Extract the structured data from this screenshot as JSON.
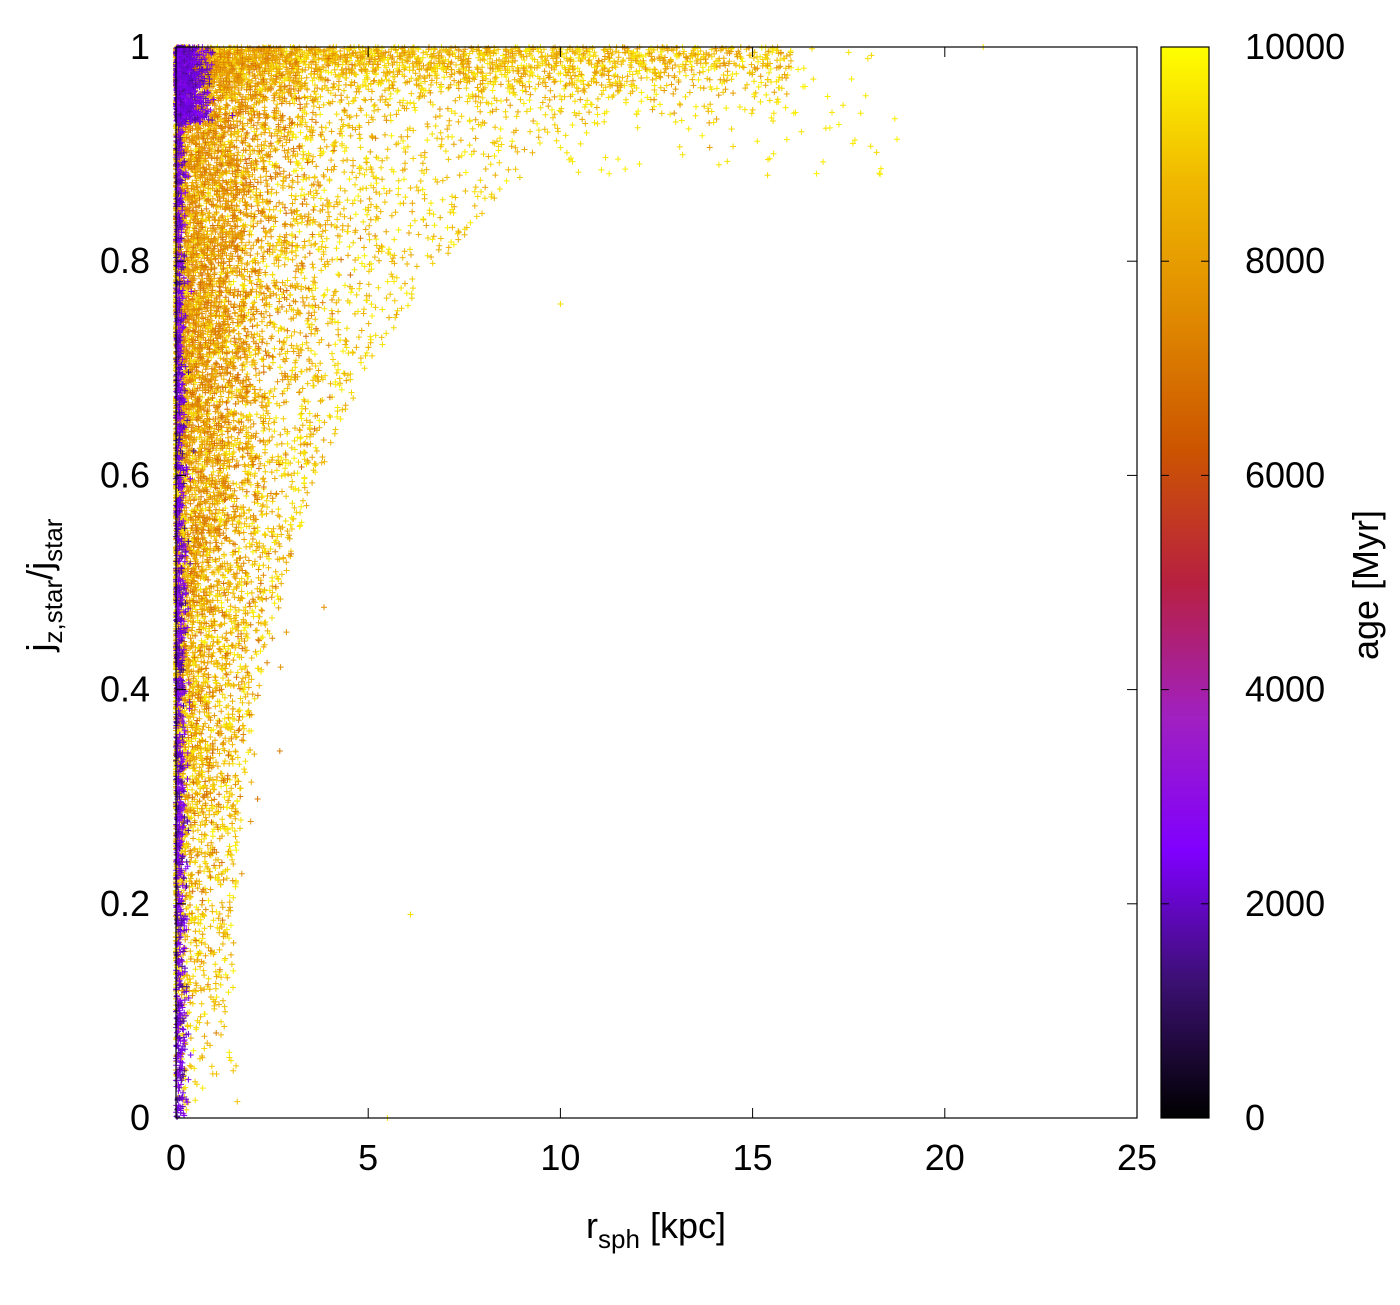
{
  "chart_data": {
    "type": "scatter",
    "title": "",
    "marker": "+",
    "x_axis": {
      "label_main": "r",
      "label_sub": "sph",
      "label_unit": " [kpc]",
      "range": [
        0,
        25
      ],
      "ticks": [
        0,
        5,
        10,
        15,
        20,
        25
      ],
      "tick_labels": [
        "0",
        "5",
        "10",
        "15",
        "20",
        "25"
      ]
    },
    "y_axis": {
      "label_parts": [
        {
          "text": "j",
          "sub": "z,star"
        },
        {
          "text": "/j",
          "sub": "star"
        }
      ],
      "range": [
        0,
        1
      ],
      "ticks": [
        0,
        0.2,
        0.4,
        0.6,
        0.8,
        1
      ],
      "tick_labels": [
        "0",
        "0.2",
        "0.4",
        "0.6",
        "0.8",
        "1"
      ]
    },
    "colorbar": {
      "label": "age [Myr]",
      "range": [
        0,
        10000
      ],
      "ticks": [
        0,
        2000,
        4000,
        6000,
        8000,
        10000
      ],
      "tick_labels": [
        "0",
        "2000",
        "4000",
        "6000",
        "8000",
        "10000"
      ],
      "palette": [
        "#000000",
        "#3a1070",
        "#8000ff",
        "#a020c0",
        "#b82040",
        "#cc5500",
        "#e08a00",
        "#f0b800",
        "#ffff00"
      ]
    },
    "grid": false,
    "legend": "none",
    "series": [
      {
        "description_points": [
          {
            "x": 0.1,
            "y": 0.99,
            "age": 1500
          },
          {
            "x": 0.2,
            "y": 0.97,
            "age": 2000
          },
          {
            "x": 0.1,
            "y": 0.6,
            "age": 2500
          },
          {
            "x": 0.5,
            "y": 0.98,
            "age": 6500
          },
          {
            "x": 1.0,
            "y": 0.95,
            "age": 7500
          },
          {
            "x": 2.0,
            "y": 0.8,
            "age": 8500
          },
          {
            "x": 3.0,
            "y": 0.6,
            "age": 9000
          },
          {
            "x": 5.0,
            "y": 0.85,
            "age": 9000
          },
          {
            "x": 8.0,
            "y": 0.9,
            "age": 9300
          },
          {
            "x": 10.0,
            "y": 0.76,
            "age": 9400
          },
          {
            "x": 13.0,
            "y": 0.93,
            "age": 9500
          },
          {
            "x": 15.4,
            "y": 0.895,
            "age": 9500
          },
          {
            "x": 17.5,
            "y": 0.995,
            "age": 9500
          },
          {
            "x": 21.0,
            "y": 1.0,
            "age": 9500
          },
          {
            "x": 6.1,
            "y": 0.19,
            "age": 9400
          },
          {
            "x": 5.5,
            "y": 0.0,
            "age": 9500
          }
        ]
      }
    ]
  }
}
